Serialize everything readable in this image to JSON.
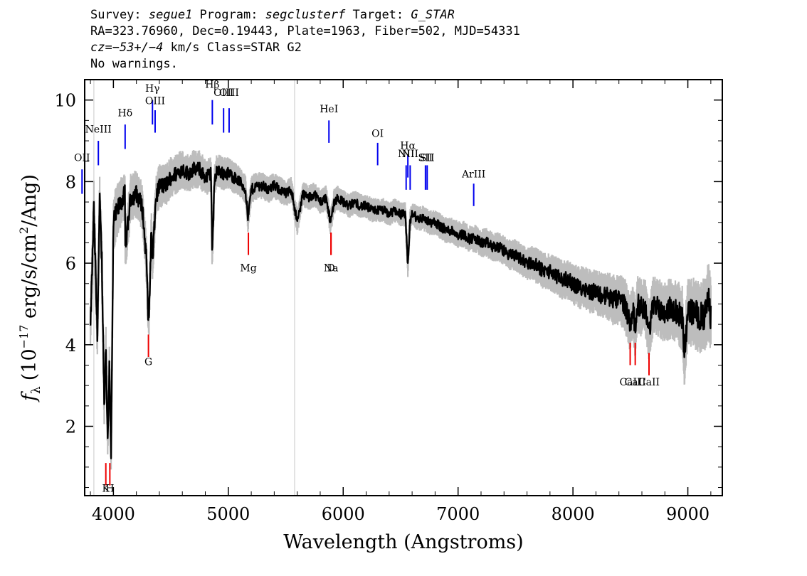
{
  "header": {
    "line1_pre": "Survey: ",
    "survey": "segue1",
    "line1_mid1": " Program: ",
    "program": "segclusterf",
    "line1_mid2": " Target: ",
    "target": "G_STAR",
    "line2": "RA=323.76960, Dec=0.19443, Plate=1963, Fiber=502, MJD=54331",
    "line3_cz": "cz=−53+/−4",
    "line3_rest": " km/s Class=STAR G2",
    "line4": "No warnings."
  },
  "colors": {
    "flux": "#000000",
    "error": "#bdbdbd",
    "emission": "#0000ee",
    "absorption": "#ee0000",
    "axes": "#000000"
  },
  "chart_data": {
    "type": "line",
    "xlabel": "Wavelength (Angstroms)",
    "ylabel": "f",
    "ylabel_sub": "λ",
    "ylabel_units_pre": "(10",
    "ylabel_units_exp": "−17",
    "ylabel_units_post": " erg/s/cm",
    "ylabel_units_exp2": "2",
    "ylabel_units_end": "/Ang)",
    "xlim": [
      3750,
      9300
    ],
    "ylim": [
      0.3,
      10.5
    ],
    "x_ticks": [
      4000,
      5000,
      6000,
      7000,
      8000,
      9000
    ],
    "x_tick_labels": [
      "4000",
      "5000",
      "6000",
      "7000",
      "8000",
      "9000"
    ],
    "y_ticks": [
      2,
      4,
      6,
      8,
      10
    ],
    "y_tick_labels": [
      "2",
      "4",
      "6",
      "8",
      "10"
    ],
    "series": [
      {
        "role": "flux",
        "x": [
          3800,
          3830,
          3860,
          3880,
          3900,
          3920,
          3935,
          3950,
          3965,
          3980,
          4000,
          4050,
          4100,
          4101,
          4150,
          4200,
          4250,
          4290,
          4300,
          4310,
          4330,
          4340,
          4370,
          4400,
          4450,
          4500,
          4550,
          4600,
          4650,
          4700,
          4750,
          4800,
          4850,
          4860,
          4880,
          4900,
          4950,
          5000,
          5050,
          5100,
          5150,
          5167,
          5172,
          5184,
          5200,
          5250,
          5300,
          5350,
          5400,
          5450,
          5500,
          5550,
          5600,
          5650,
          5700,
          5750,
          5800,
          5850,
          5890,
          5896,
          5920,
          5950,
          6000,
          6050,
          6100,
          6150,
          6200,
          6250,
          6300,
          6350,
          6400,
          6450,
          6500,
          6540,
          6563,
          6580,
          6600,
          6650,
          6700,
          6750,
          6800,
          6850,
          6900,
          6950,
          7000,
          7050,
          7100,
          7150,
          7200,
          7250,
          7300,
          7350,
          7400,
          7450,
          7500,
          7550,
          7600,
          7650,
          7700,
          7750,
          7800,
          7850,
          7900,
          7950,
          8000,
          8050,
          8100,
          8150,
          8200,
          8250,
          8300,
          8350,
          8400,
          8450,
          8498,
          8520,
          8542,
          8560,
          8600,
          8630,
          8662,
          8700,
          8750,
          8800,
          8850,
          8900,
          8950,
          8970,
          9000,
          9050,
          9100,
          9150,
          9180,
          9200
        ],
        "y": [
          4.4,
          7.3,
          4.2,
          7.5,
          6.0,
          2.5,
          4.0,
          1.6,
          3.5,
          1.3,
          7.0,
          7.4,
          7.7,
          6.3,
          7.6,
          7.7,
          7.4,
          6.0,
          4.8,
          4.7,
          6.8,
          6.0,
          7.6,
          7.9,
          7.9,
          8.1,
          8.2,
          8.3,
          8.2,
          8.3,
          8.3,
          8.1,
          8.2,
          6.2,
          8.0,
          8.3,
          8.2,
          8.2,
          8.1,
          8.0,
          7.8,
          7.2,
          7.1,
          7.4,
          7.8,
          7.9,
          7.9,
          7.8,
          7.9,
          7.8,
          7.7,
          7.8,
          7.0,
          7.7,
          7.6,
          7.7,
          7.5,
          7.6,
          7.0,
          7.1,
          7.5,
          7.6,
          7.5,
          7.4,
          7.5,
          7.4,
          7.4,
          7.3,
          7.3,
          7.3,
          7.2,
          7.3,
          7.2,
          7.2,
          5.9,
          7.0,
          7.2,
          7.1,
          7.1,
          7.0,
          7.0,
          6.9,
          6.8,
          6.8,
          6.7,
          6.7,
          6.6,
          6.6,
          6.5,
          6.5,
          6.4,
          6.4,
          6.3,
          6.2,
          6.2,
          6.1,
          6.0,
          6.0,
          5.9,
          5.8,
          5.8,
          5.7,
          5.6,
          5.6,
          5.5,
          5.4,
          5.4,
          5.3,
          5.3,
          5.2,
          5.2,
          5.1,
          5.1,
          5.0,
          4.5,
          4.9,
          4.4,
          5.0,
          4.9,
          4.9,
          4.3,
          5.0,
          4.9,
          4.8,
          4.9,
          4.8,
          4.7,
          3.8,
          4.8,
          4.8,
          4.7,
          4.7,
          5.1,
          4.7
        ]
      }
    ],
    "error_band_halfwidth": [
      0.5,
      0.7,
      0.5,
      0.7,
      0.6,
      0.5,
      0.5,
      0.4,
      0.5,
      0.4,
      0.6,
      0.55,
      0.5,
      0.5,
      0.5,
      0.5,
      0.5,
      0.5,
      0.4,
      0.4,
      0.5,
      0.5,
      0.45,
      0.45,
      0.45,
      0.42,
      0.42,
      0.4,
      0.4,
      0.4,
      0.4,
      0.38,
      0.38,
      0.38,
      0.35,
      0.35,
      0.35,
      0.33,
      0.33,
      0.3,
      0.3,
      0.3,
      0.3,
      0.3,
      0.3,
      0.28,
      0.28,
      0.28,
      0.27,
      0.27,
      0.27,
      0.27,
      0.27,
      0.26,
      0.26,
      0.26,
      0.26,
      0.26,
      0.26,
      0.26,
      0.26,
      0.25,
      0.25,
      0.25,
      0.25,
      0.25,
      0.25,
      0.25,
      0.25,
      0.25,
      0.25,
      0.25,
      0.25,
      0.25,
      0.25,
      0.25,
      0.25,
      0.25,
      0.26,
      0.26,
      0.26,
      0.27,
      0.27,
      0.27,
      0.28,
      0.28,
      0.28,
      0.29,
      0.29,
      0.3,
      0.3,
      0.31,
      0.31,
      0.32,
      0.33,
      0.34,
      0.35,
      0.36,
      0.37,
      0.38,
      0.39,
      0.4,
      0.41,
      0.42,
      0.43,
      0.44,
      0.45,
      0.46,
      0.47,
      0.48,
      0.5,
      0.52,
      0.54,
      0.56,
      0.6,
      0.6,
      0.6,
      0.6,
      0.6,
      0.6,
      0.6,
      0.6,
      0.62,
      0.62,
      0.64,
      0.66,
      0.7,
      0.7,
      0.72,
      0.74,
      0.76,
      0.78,
      0.8,
      0.8
    ],
    "vertical_lines": [
      3830,
      5577
    ],
    "emission_lines": [
      {
        "label": "OII",
        "wavelength": 3727,
        "label_y": 8.5,
        "y_top": 8.3,
        "y_bottom": 7.7
      },
      {
        "label": "NeIII",
        "wavelength": 3869,
        "label_y": 9.2,
        "y_top": 9.0,
        "y_bottom": 8.4
      },
      {
        "label": "Hδ",
        "wavelength": 4102,
        "label_y": 9.6,
        "y_top": 9.4,
        "y_bottom": 8.8
      },
      {
        "label": "Hγ",
        "wavelength": 4340,
        "label_y": 10.2,
        "y_top": 10.0,
        "y_bottom": 9.4
      },
      {
        "label": "OIII",
        "wavelength": 4363,
        "label_y": 9.9,
        "y_top": 9.75,
        "y_bottom": 9.2
      },
      {
        "label": "Hβ",
        "wavelength": 4861,
        "label_y": 10.3,
        "y_top": 10.0,
        "y_bottom": 9.4
      },
      {
        "label": "OIII",
        "wavelength": 4959,
        "label_y": 10.1,
        "y_top": 9.8,
        "y_bottom": 9.2
      },
      {
        "label": "OIII",
        "wavelength": 5007,
        "label_y": 10.1,
        "y_top": 9.8,
        "y_bottom": 9.2
      },
      {
        "label": "HeI",
        "wavelength": 5876,
        "label_y": 9.7,
        "y_top": 9.5,
        "y_bottom": 8.95
      },
      {
        "label": "OI",
        "wavelength": 6300,
        "label_y": 9.1,
        "y_top": 8.95,
        "y_bottom": 8.4
      },
      {
        "label": "NII",
        "wavelength": 6548,
        "label_y": 8.6,
        "y_top": 8.4,
        "y_bottom": 7.8
      },
      {
        "label": "Hα",
        "wavelength": 6563,
        "label_y": 8.8,
        "y_top": 8.65,
        "y_bottom": 8.1
      },
      {
        "label": "NII",
        "wavelength": 6583,
        "label_y": 8.6,
        "y_top": 8.4,
        "y_bottom": 7.8
      },
      {
        "label": "SII",
        "wavelength": 6716,
        "label_y": 8.5,
        "y_top": 8.4,
        "y_bottom": 7.8
      },
      {
        "label": "SII",
        "wavelength": 6731,
        "label_y": 8.5,
        "y_top": 8.4,
        "y_bottom": 7.8
      },
      {
        "label": "ArIII",
        "wavelength": 7136,
        "label_y": 8.1,
        "y_top": 7.95,
        "y_bottom": 7.4
      }
    ],
    "absorption_lines": [
      {
        "label": "K",
        "wavelength": 3934,
        "label_y": 0.4,
        "y_top": 1.1,
        "y_bottom": 0.55
      },
      {
        "label": "H",
        "wavelength": 3969,
        "label_y": 0.4,
        "y_top": 1.1,
        "y_bottom": 0.55
      },
      {
        "label": "G",
        "wavelength": 4305,
        "label_y": 3.5,
        "y_top": 4.25,
        "y_bottom": 3.7
      },
      {
        "label": "Mg",
        "wavelength": 5175,
        "label_y": 5.8,
        "y_top": 6.75,
        "y_bottom": 6.2
      },
      {
        "label": "Na",
        "wavelength": 5894,
        "label_y": 5.8,
        "y_top": 6.75,
        "y_bottom": 6.2
      },
      {
        "label": "D",
        "wavelength": 5894,
        "label_y": 5.8,
        "y_top": 6.75,
        "y_bottom": 6.2
      },
      {
        "label": "CaII",
        "wavelength": 8498,
        "label_y": 3.0,
        "y_top": 4.05,
        "y_bottom": 3.5
      },
      {
        "label": "CaII",
        "wavelength": 8542,
        "label_y": 3.0,
        "y_top": 4.05,
        "y_bottom": 3.5
      },
      {
        "label": "CaII",
        "wavelength": 8662,
        "label_y": 3.0,
        "y_top": 3.8,
        "y_bottom": 3.25
      }
    ]
  }
}
